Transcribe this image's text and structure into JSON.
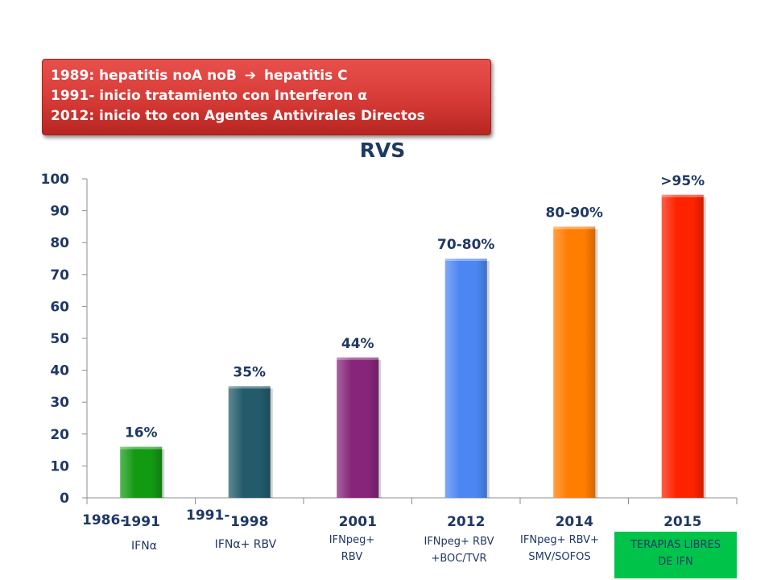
{
  "callout": {
    "line1_a": "1989: hepatitis noA noB",
    "line1_arrow": "➔",
    "line1_b": "hepatitis C",
    "line2": "1991- inicio tratamiento con Interferon α",
    "line3": "2012: inicio tto con Agentes Antivirales Directos"
  },
  "chart_data": {
    "type": "bar",
    "title": "RVS",
    "categories": [
      "1991",
      "1998",
      "2001",
      "2012",
      "2014",
      "2015"
    ],
    "values": [
      16,
      35,
      44,
      75,
      85,
      95
    ],
    "data_labels": [
      "16%",
      "35%",
      "44%",
      "70-80%",
      "80-90%",
      ">95%"
    ],
    "bar_colors": [
      "#129a12",
      "#235b6b",
      "#862579",
      "#4c86f3",
      "#ff7d00",
      "#ff2200"
    ],
    "ylim": [
      0,
      100
    ],
    "yticks": [
      0,
      10,
      20,
      30,
      40,
      50,
      60,
      70,
      80,
      90,
      100
    ],
    "xlabel": "",
    "ylabel": "",
    "legend": "none",
    "grid": false
  },
  "start_years": [
    "1986-",
    "1991-"
  ],
  "treatments": {
    "t1": "IFNα",
    "t2": "IFNα+ RBV",
    "t3_a": "IFNpeg+",
    "t3_b": "RBV",
    "t4_a": "IFNpeg+ RBV",
    "t4_b": "+BOC/TVR",
    "t5_a": "IFNpeg+ RBV+",
    "t5_b": "SMV/SOFOS",
    "t6_a": "TERAPIAS LIBRES",
    "t6_b": "DE IFN"
  },
  "colors": {
    "text": "#1f3864",
    "callout": "#d63a36",
    "green_box": "#00c44a"
  }
}
